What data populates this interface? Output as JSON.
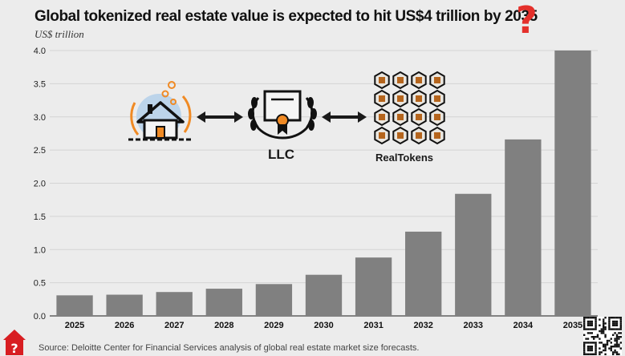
{
  "chart_data": {
    "type": "bar",
    "title": "Global tokenized real estate value is expected to hit US$4 trillion by 2035",
    "subtitle": "US$ trillion",
    "categories": [
      "2025",
      "2026",
      "2027",
      "2028",
      "2029",
      "2030",
      "2031",
      "2032",
      "2033",
      "2034",
      "2035"
    ],
    "values": [
      0.31,
      0.32,
      0.36,
      0.41,
      0.48,
      0.62,
      0.88,
      1.27,
      1.84,
      2.66,
      4.0
    ],
    "ylim": [
      0,
      4.0
    ],
    "yticks": [
      "0.0",
      "0.5",
      "1.0",
      "1.5",
      "2.0",
      "2.5",
      "3.0",
      "3.5",
      "4.0"
    ],
    "xlabel": "",
    "ylabel": "",
    "grid": true,
    "bar_color": "#808080"
  },
  "decor": {
    "question_mark": "?",
    "diagram_label_llc": "LLC",
    "diagram_label_tokens": "RealTokens",
    "accent_color": "#e4302b",
    "icons": [
      "house-icon",
      "double-arrow-icon",
      "llc-certificate-icon",
      "real-tokens-grid-icon",
      "home-question-icon",
      "qr-code-icon"
    ]
  },
  "source": "Source: Deloitte Center for Financial Services analysis of global real estate market size forecasts."
}
